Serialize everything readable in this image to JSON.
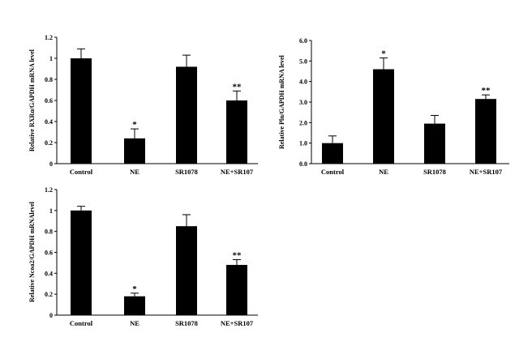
{
  "chart_data": [
    {
      "type": "bar",
      "ylabel": "Relative RXRα/GAPDH  mRNA  level",
      "categories": [
        "Control",
        "NE",
        "SR1078",
        "NE+SR107"
      ],
      "values": [
        1.0,
        0.24,
        0.92,
        0.6
      ],
      "errors": [
        0.09,
        0.09,
        0.11,
        0.09
      ],
      "annotations": [
        "",
        "*",
        "",
        "**"
      ],
      "ylim": [
        0,
        1.2
      ],
      "yticks": [
        "0",
        "0.2",
        "0.4",
        "0.6",
        "0.8",
        "1",
        "1.2"
      ],
      "grid": false
    },
    {
      "type": "bar",
      "ylabel": "Relative Pln/GAPDH mRNA  level",
      "categories": [
        "Control",
        "NE",
        "SR1078",
        "NE+SR107"
      ],
      "values": [
        1.0,
        4.6,
        1.95,
        3.15
      ],
      "errors": [
        0.35,
        0.55,
        0.4,
        0.2
      ],
      "annotations": [
        "",
        "*",
        "",
        "**"
      ],
      "ylim": [
        0,
        6
      ],
      "yticks": [
        "0.0",
        "1.0",
        "2.0",
        "3.0",
        "4.0",
        "5.0",
        "6.0"
      ],
      "grid": false
    },
    {
      "type": "bar",
      "ylabel": "Relative Ncoa2/GAPDH mRNAlevel",
      "categories": [
        "Control",
        "NE",
        "SR1078",
        "NE+SR107"
      ],
      "values": [
        1.0,
        0.18,
        0.85,
        0.48
      ],
      "errors": [
        0.04,
        0.03,
        0.11,
        0.05
      ],
      "annotations": [
        "",
        "*",
        "",
        "**"
      ],
      "ylim": [
        0,
        1.2
      ],
      "yticks": [
        "0",
        "0.2",
        "0.4",
        "0.6",
        "0.8",
        "1",
        "1.2"
      ],
      "grid": false
    }
  ],
  "style": {
    "bar_color": "#000000",
    "axis_color": "#000000",
    "background": "#ffffff"
  }
}
